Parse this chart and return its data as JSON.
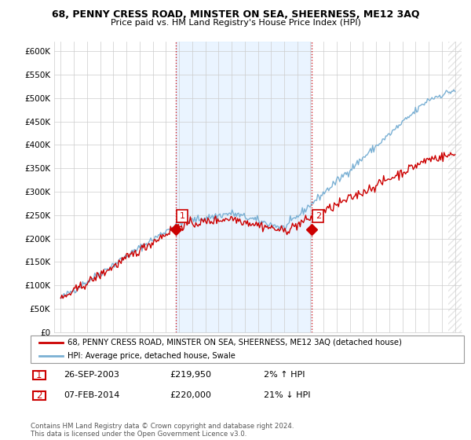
{
  "title": "68, PENNY CRESS ROAD, MINSTER ON SEA, SHEERNESS, ME12 3AQ",
  "subtitle": "Price paid vs. HM Land Registry's House Price Index (HPI)",
  "ylabel_values": [
    "£0",
    "£50K",
    "£100K",
    "£150K",
    "£200K",
    "£250K",
    "£300K",
    "£350K",
    "£400K",
    "£450K",
    "£500K",
    "£550K",
    "£600K"
  ],
  "ylim": [
    0,
    620000
  ],
  "yticks": [
    0,
    50000,
    100000,
    150000,
    200000,
    250000,
    300000,
    350000,
    400000,
    450000,
    500000,
    550000,
    600000
  ],
  "sale1": {
    "date_num": 2003.74,
    "price": 219950,
    "label": "1"
  },
  "sale2": {
    "date_num": 2014.09,
    "price": 220000,
    "label": "2"
  },
  "legend_line1": "68, PENNY CRESS ROAD, MINSTER ON SEA, SHEERNESS, ME12 3AQ (detached house)",
  "legend_line2": "HPI: Average price, detached house, Swale",
  "table_rows": [
    {
      "num": "1",
      "date": "26-SEP-2003",
      "price": "£219,950",
      "hpi": "2% ↑ HPI"
    },
    {
      "num": "2",
      "date": "07-FEB-2014",
      "price": "£220,000",
      "hpi": "21% ↓ HPI"
    }
  ],
  "footnote": "Contains HM Land Registry data © Crown copyright and database right 2024.\nThis data is licensed under the Open Government Licence v3.0.",
  "hpi_color": "#7ab0d4",
  "sale_color": "#cc0000",
  "vline_color": "#cc0000",
  "shade_color": "#ddeeff",
  "hatch_color": "#aaaaaa"
}
